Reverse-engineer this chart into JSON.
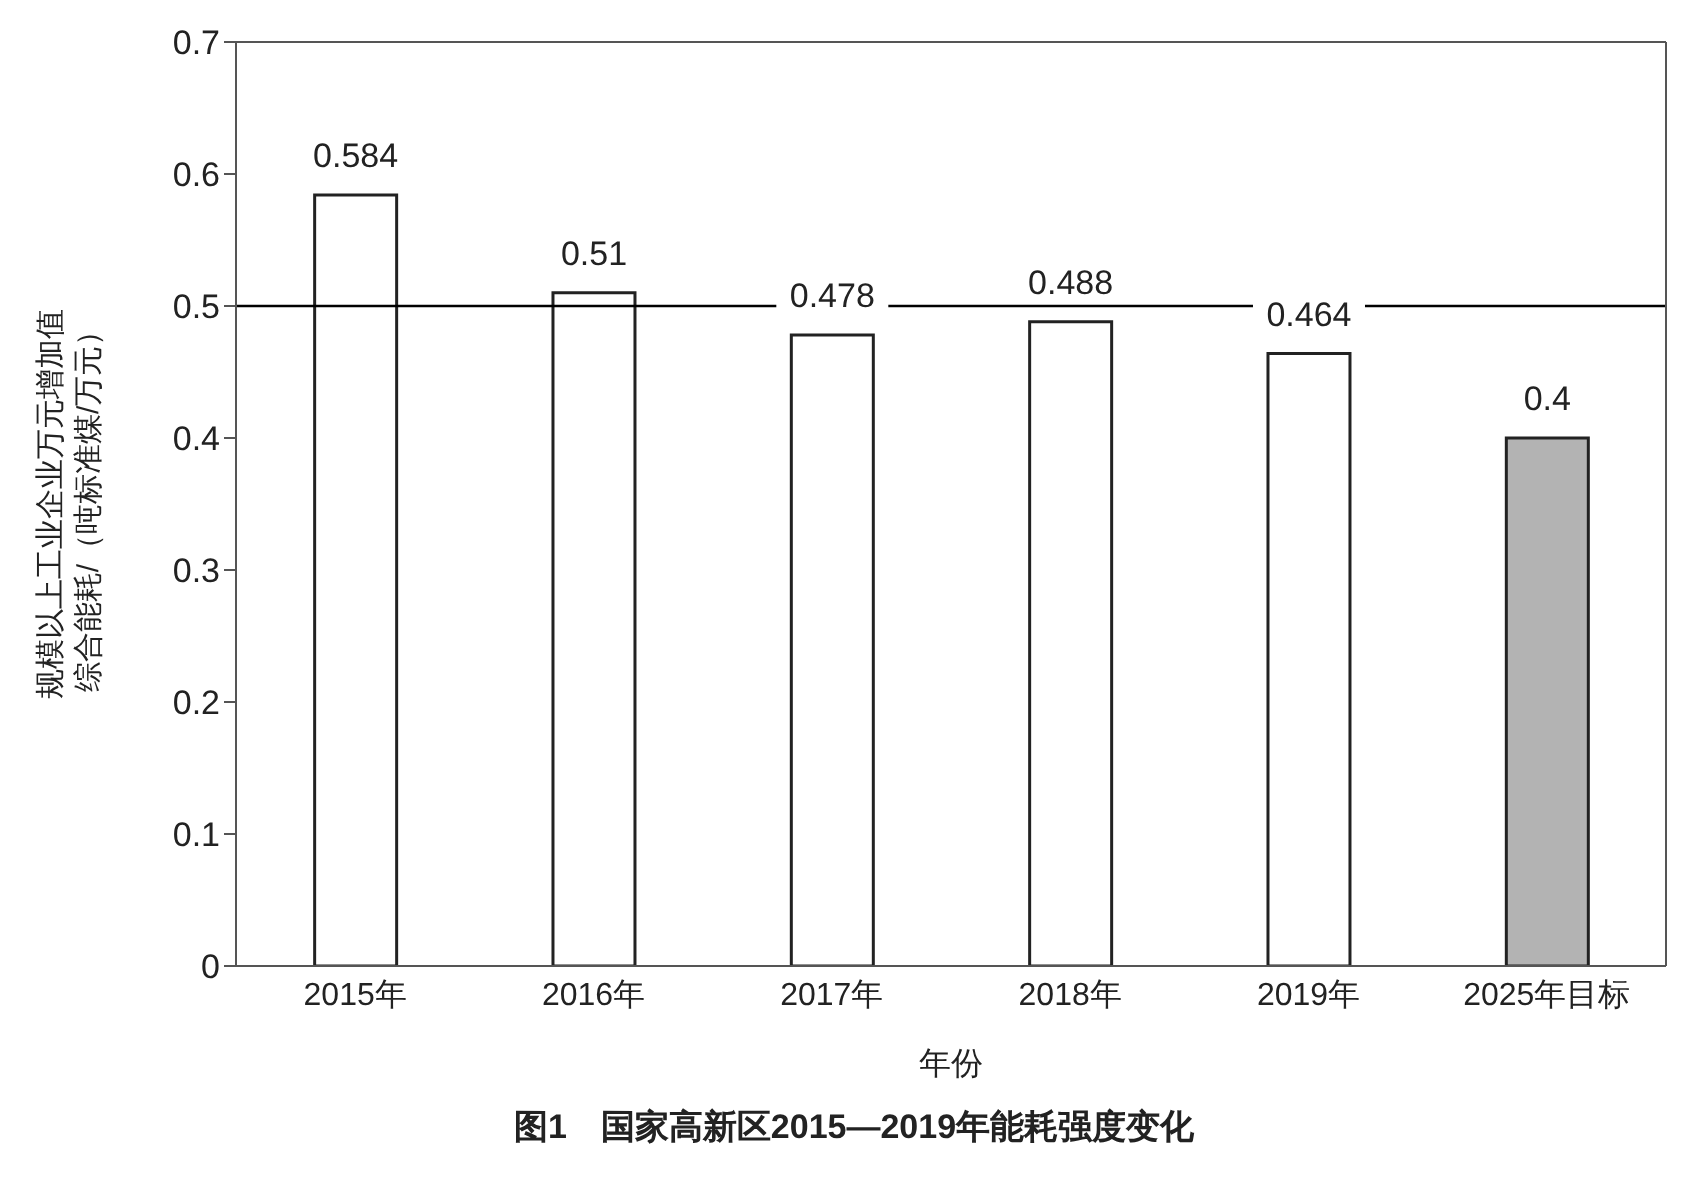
{
  "chart_data": {
    "type": "bar",
    "title": "图1　国家高新区2015—2019年能耗强度变化",
    "xlabel": "年份",
    "ylabel": "规模以上工业企业万元增加值综合能耗/（吨标准煤/万元）",
    "categories": [
      "2015年",
      "2016年",
      "2017年",
      "2018年",
      "2019年",
      "2025年目标"
    ],
    "values": [
      0.584,
      0.51,
      0.478,
      0.488,
      0.464,
      0.4
    ],
    "colors": [
      "#ffffff",
      "#ffffff",
      "#ffffff",
      "#ffffff",
      "#ffffff",
      "#b3b3b3"
    ],
    "ylim": [
      0,
      0.7
    ],
    "yticks": [
      0,
      0.1,
      0.2,
      0.3,
      0.4,
      0.5,
      0.6,
      0.7
    ],
    "ref_lines": [
      {
        "axis": "y",
        "value": 0.5,
        "color": "#000000"
      }
    ],
    "data_labels": true,
    "grid": false,
    "legend": false
  }
}
